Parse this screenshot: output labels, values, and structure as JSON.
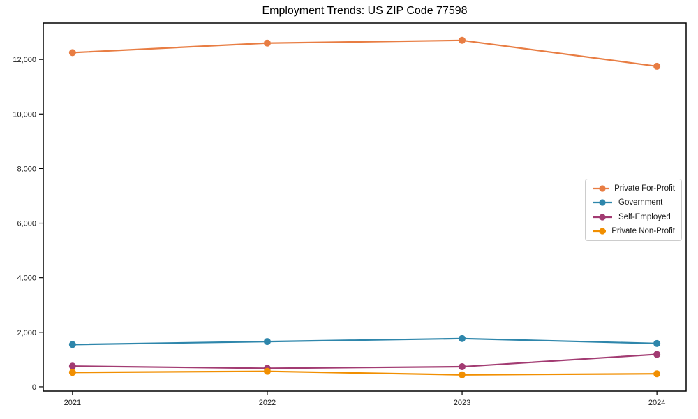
{
  "chart_data": {
    "type": "line",
    "title": "Employment Trends: US ZIP Code 77598",
    "x": [
      2021,
      2022,
      2023,
      2024
    ],
    "xticklabels": [
      "2021",
      "2022",
      "2023",
      "2024"
    ],
    "series": [
      {
        "name": "Private For-Profit",
        "color": "#E87D43",
        "values": [
          12250,
          12600,
          12700,
          11750
        ]
      },
      {
        "name": "Government",
        "color": "#2E86AB",
        "values": [
          1550,
          1660,
          1770,
          1590
        ]
      },
      {
        "name": "Self-Employed",
        "color": "#A23B72",
        "values": [
          760,
          680,
          740,
          1190
        ]
      },
      {
        "name": "Private Non-Profit",
        "color": "#F18F01",
        "values": [
          530,
          570,
          440,
          480
        ]
      }
    ],
    "yticks": {
      "values": [
        0,
        2000,
        4000,
        6000,
        8000,
        10000,
        12000
      ],
      "labels": [
        "0",
        "2,000",
        "4,000",
        "6,000",
        "8,000",
        "10,000",
        "12,000"
      ]
    },
    "xlim": [
      2020.85,
      2024.15
    ],
    "ylim": [
      -155,
      13335
    ],
    "grid": false,
    "legend_position": "center right",
    "marker": "circle",
    "colors": {
      "spine": "#000000",
      "tick_label": "#191919",
      "background": "#ffffff",
      "legend_border": "#cccccc"
    }
  }
}
